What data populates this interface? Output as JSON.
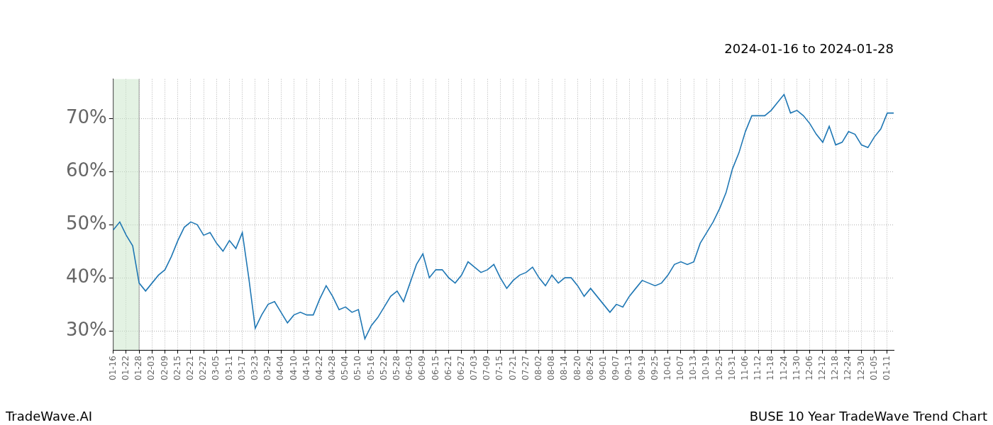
{
  "chart_data": {
    "type": "line",
    "title": "2024-01-16 to 2024-01-28",
    "footer_left": "TradeWave.AI",
    "footer_right": "BUSE 10 Year TradeWave Trend Chart",
    "categories": [
      "01-16",
      null,
      "01-22",
      null,
      "01-28",
      null,
      "02-03",
      null,
      "02-09",
      null,
      "02-15",
      null,
      "02-21",
      null,
      "02-27",
      null,
      "03-05",
      null,
      "03-11",
      null,
      "03-17",
      null,
      "03-23",
      null,
      "03-29",
      null,
      "04-04",
      null,
      "04-10",
      null,
      "04-16",
      null,
      "04-22",
      null,
      "04-28",
      null,
      "05-04",
      null,
      "05-10",
      null,
      "05-16",
      null,
      "05-22",
      null,
      "05-28",
      null,
      "06-03",
      null,
      "06-09",
      null,
      "06-15",
      null,
      "06-21",
      null,
      "06-27",
      null,
      "07-03",
      null,
      "07-09",
      null,
      "07-15",
      null,
      "07-21",
      null,
      "07-27",
      null,
      "08-02",
      null,
      "08-08",
      null,
      "08-14",
      null,
      "08-20",
      null,
      "08-26",
      null,
      "09-01",
      null,
      "09-07",
      null,
      "09-13",
      null,
      "09-19",
      null,
      "09-25",
      null,
      "10-01",
      null,
      "10-07",
      null,
      "10-13",
      null,
      "10-19",
      null,
      "10-25",
      null,
      "10-31",
      null,
      "11-06",
      null,
      "11-12",
      null,
      "11-18",
      null,
      "11-24",
      null,
      "11-30",
      null,
      "12-06",
      null,
      "12-12",
      null,
      "12-18",
      null,
      "12-24",
      null,
      "12-30",
      null,
      "01-05",
      null,
      "01-11",
      null
    ],
    "values": [
      49,
      50.5,
      48,
      46,
      39,
      37.5,
      39,
      40.5,
      41.5,
      44,
      47,
      49.5,
      50.5,
      50,
      48,
      48.5,
      46.5,
      45,
      47,
      45.5,
      48.5,
      40,
      30.5,
      33,
      35,
      35.5,
      33.5,
      31.5,
      33,
      33.5,
      33,
      33,
      36,
      38.5,
      36.5,
      34,
      34.5,
      33.5,
      34,
      28.5,
      31,
      32.5,
      34.5,
      36.5,
      37.5,
      35.5,
      39,
      42.5,
      44.5,
      40,
      41.5,
      41.5,
      40,
      39,
      40.5,
      43,
      42,
      41,
      41.5,
      42.5,
      40,
      38,
      39.5,
      40.5,
      41,
      42,
      40,
      38.5,
      40.5,
      39,
      40,
      40,
      38.5,
      36.5,
      38,
      36.5,
      35,
      33.5,
      35,
      34.5,
      36.5,
      38,
      39.5,
      39,
      38.5,
      39,
      40.5,
      42.5,
      43,
      42.5,
      43,
      46.5,
      48.5,
      50.5,
      53,
      56,
      60.5,
      63.5,
      67.5,
      70.5,
      70.5,
      70.5,
      71.5,
      73,
      74.5,
      71,
      71.5,
      70.5,
      69,
      67,
      65.5,
      68.5,
      65,
      65.5,
      67.5,
      67,
      65,
      64.5,
      66.5,
      68,
      71,
      71
    ],
    "color": "#1f77b4",
    "shaded_range": [
      "01-16",
      "01-28"
    ],
    "ylim": [
      26.4,
      77.4
    ],
    "yticks": [
      {
        "value": 30,
        "label": "30%"
      },
      {
        "value": 40,
        "label": "40%"
      },
      {
        "value": 50,
        "label": "50%"
      },
      {
        "value": 60,
        "label": "60%"
      },
      {
        "value": 70,
        "label": "70%"
      }
    ],
    "grid": true
  }
}
